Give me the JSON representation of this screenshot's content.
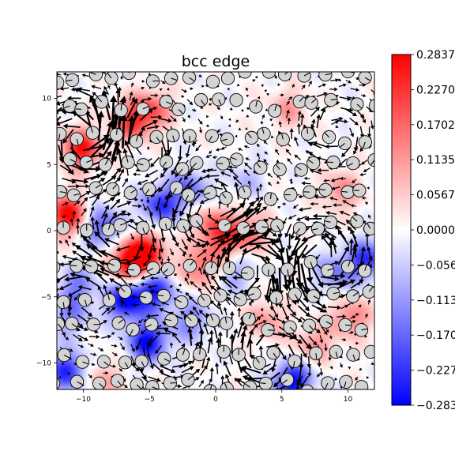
{
  "chart_data": {
    "type": "heatmap",
    "title": "bcc edge",
    "xlim": [
      -12,
      12
    ],
    "ylim": [
      -12,
      12
    ],
    "x_ticks": [
      -10,
      -5,
      0,
      5,
      10
    ],
    "x_tick_labels": [
      "−10",
      "−5",
      "0",
      "5",
      "10"
    ],
    "y_ticks": [
      10,
      5,
      0,
      -5,
      -10
    ],
    "y_tick_labels": [
      "10",
      "5",
      "0",
      "−5",
      "−10"
    ],
    "colormap": "bwr",
    "color_low": "#0000ff",
    "color_mid": "#ffffff",
    "color_high": "#ff0000",
    "colorbar_range": [
      -0.2837,
      0.2837
    ],
    "colorbar_ticks": [
      0.2837,
      0.227,
      0.1702,
      0.1135,
      0.0567,
      0.0,
      -0.0567,
      -0.1135,
      -0.1702,
      -0.227,
      -0.2837
    ],
    "colorbar_tick_labels": [
      "0.2837",
      "0.2270",
      "0.1702",
      "0.1135",
      "0.0567",
      "0.0000",
      "−0.0567",
      "−0.1135",
      "−0.1702",
      "−0.2270",
      "−0.2837"
    ],
    "atom_rows_y": [
      11.6,
      9.5,
      7.0,
      5.0,
      2.8,
      0.3,
      -2.8,
      -5.0,
      -7.1,
      -9.6,
      -11.7
    ],
    "atom_spacing": 1.45,
    "field_blobs": [
      {
        "x": -11.2,
        "y": 1.2,
        "v": 0.28
      },
      {
        "x": -10.2,
        "y": 6.2,
        "v": 0.26
      },
      {
        "x": -6.5,
        "y": -2.5,
        "v": 0.28
      },
      {
        "x": -5.2,
        "y": -1.6,
        "v": 0.25
      },
      {
        "x": -6.3,
        "y": 8.2,
        "v": 0.2
      },
      {
        "x": -4.8,
        "y": 9.2,
        "v": 0.16
      },
      {
        "x": -1.2,
        "y": -2.8,
        "v": 0.17
      },
      {
        "x": -0.3,
        "y": 0.4,
        "v": 0.15
      },
      {
        "x": 0.8,
        "y": -0.8,
        "v": 0.15
      },
      {
        "x": 2.5,
        "y": 0.0,
        "v": 0.14
      },
      {
        "x": 9.5,
        "y": 3.0,
        "v": 0.13
      },
      {
        "x": 10.2,
        "y": -6.6,
        "v": 0.15
      },
      {
        "x": 7.4,
        "y": -8.6,
        "v": 0.12
      },
      {
        "x": 3.8,
        "y": -6.8,
        "v": 0.12
      },
      {
        "x": 5.5,
        "y": 9.2,
        "v": 0.1
      },
      {
        "x": -8.5,
        "y": -11.2,
        "v": 0.1
      },
      {
        "x": -8.6,
        "y": 0.3,
        "v": -0.2
      },
      {
        "x": -6.8,
        "y": -5.3,
        "v": -0.28
      },
      {
        "x": -4.6,
        "y": -4.6,
        "v": -0.24
      },
      {
        "x": -5.1,
        "y": -8.4,
        "v": -0.28
      },
      {
        "x": -4.2,
        "y": 1.9,
        "v": -0.22
      },
      {
        "x": -2.0,
        "y": 3.2,
        "v": -0.16
      },
      {
        "x": -1.8,
        "y": -6.8,
        "v": -0.14
      },
      {
        "x": 5.8,
        "y": -11.4,
        "v": -0.28
      },
      {
        "x": 11.4,
        "y": -2.2,
        "v": -0.22
      },
      {
        "x": 9.0,
        "y": -3.2,
        "v": -0.14
      },
      {
        "x": -11.2,
        "y": -10.6,
        "v": -0.24
      },
      {
        "x": -10.5,
        "y": -4.2,
        "v": -0.14
      },
      {
        "x": 2.2,
        "y": 3.8,
        "v": -0.07
      },
      {
        "x": 1.5,
        "y": -3.2,
        "v": -0.1
      },
      {
        "x": -11.0,
        "y": -6.5,
        "v": -0.12
      }
    ],
    "vortex_centers": [
      {
        "x": -10.0,
        "y": 7.0,
        "s": 2.8
      },
      {
        "x": -5.5,
        "y": 6.5,
        "s": -2.0
      },
      {
        "x": 0.0,
        "y": 1.5,
        "s": 2.0
      },
      {
        "x": 2.5,
        "y": -2.5,
        "s": -2.5
      },
      {
        "x": 8.0,
        "y": -2.0,
        "s": 2.6
      },
      {
        "x": 4.0,
        "y": -9.5,
        "s": -2.2
      },
      {
        "x": -9.5,
        "y": -5.0,
        "s": 1.6
      },
      {
        "x": -3.5,
        "y": -9.0,
        "s": 1.8
      },
      {
        "x": 9.0,
        "y": 7.5,
        "s": -1.5
      },
      {
        "x": -7.0,
        "y": -0.5,
        "s": -1.8
      }
    ]
  }
}
